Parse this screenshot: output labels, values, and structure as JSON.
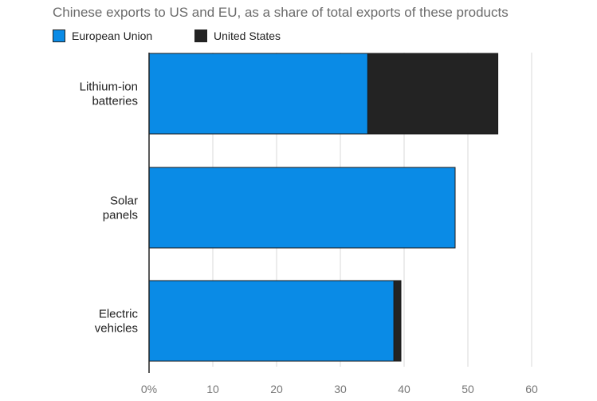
{
  "chart_data": {
    "type": "bar",
    "orientation": "horizontal",
    "stacked": true,
    "title": "Chinese exports to US and EU, as a share of total exports of these products",
    "xlabel": "",
    "ylabel": "",
    "categories": [
      [
        "Lithium-ion",
        "batteries"
      ],
      [
        "Solar",
        "panels"
      ],
      [
        "Electric",
        "vehicles"
      ]
    ],
    "series": [
      {
        "name": "European Union",
        "color": "#0a8be6",
        "values": [
          34.3,
          48.0,
          38.4
        ]
      },
      {
        "name": "United States",
        "color": "#232323",
        "values": [
          20.4,
          0.0,
          1.1
        ]
      }
    ],
    "xlim": [
      0,
      60
    ],
    "xticks": [
      0,
      10,
      20,
      30,
      40,
      50,
      60
    ],
    "xtick_labels": [
      "0%",
      "10",
      "20",
      "30",
      "40",
      "50",
      "60"
    ],
    "grid": "vertical",
    "legend": "top-left"
  }
}
